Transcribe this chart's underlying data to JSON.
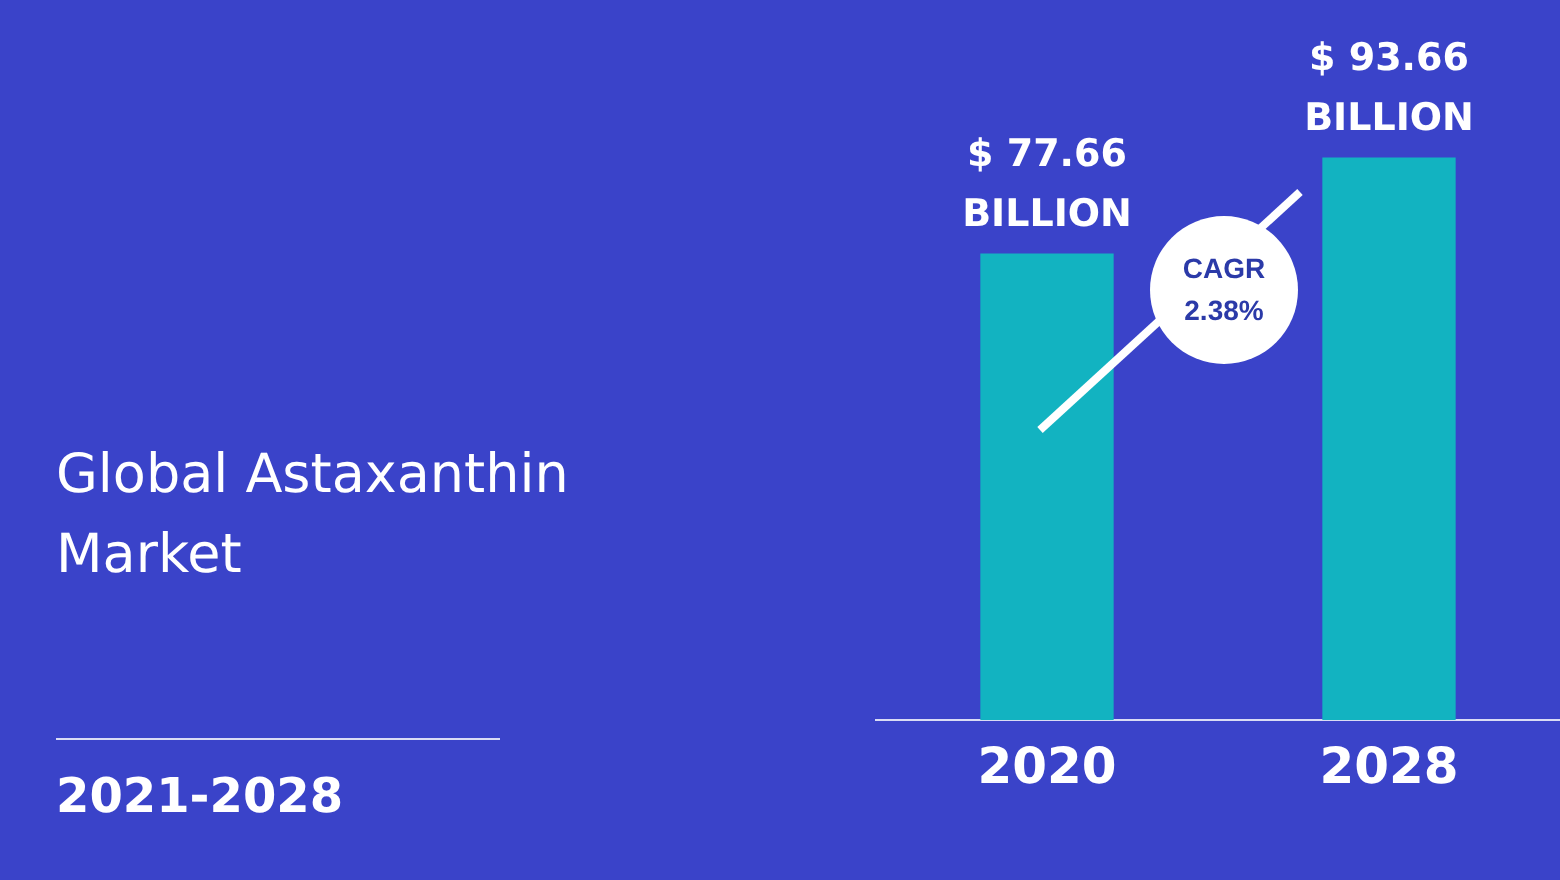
{
  "chart_data": {
    "type": "bar",
    "title": "Global Astaxanthin Market",
    "subtitle": "2021-2028",
    "categories": [
      "2020",
      "2028"
    ],
    "values": [
      77.66,
      93.66
    ],
    "value_labels": [
      "$ 77.66 BILLION",
      "$ 93.66 BILLION"
    ],
    "color": "#12b3c1",
    "annotations": [
      "CAGR 2.38%"
    ],
    "grid": false,
    "legend": false,
    "tick_labels": "x"
  }
}
